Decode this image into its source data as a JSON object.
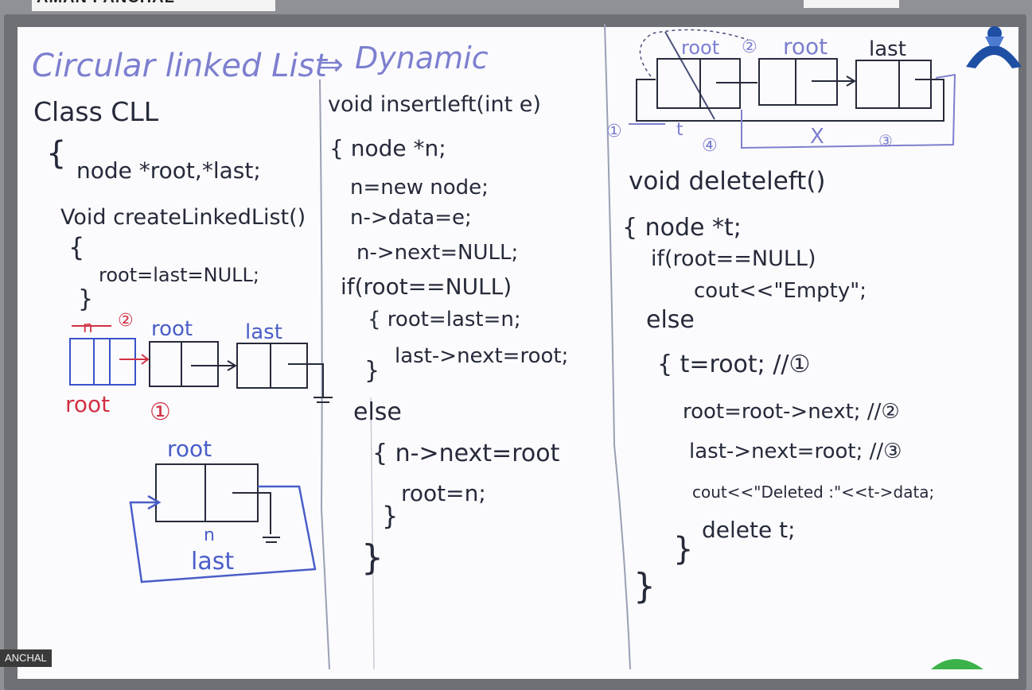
{
  "header_name": "AMAN PANCHAL",
  "name_tag": "ANCHAL",
  "title": "Circular linked List",
  "title_arrow": "⇒",
  "title_suffix": "Dynamic",
  "col1": {
    "lines": [
      "Class CLL",
      "{",
      "node *root,*last;",
      "Void createLinkedList()",
      "{",
      "root=last=NULL;",
      "}"
    ],
    "diagram_labels": {
      "n_label": "n",
      "step2": "②",
      "root": "root",
      "last": "last",
      "root_red": "root",
      "step1": "①",
      "root2": "root",
      "n2": "n",
      "last2": "last"
    }
  },
  "col2": {
    "lines": [
      "void insertleft(int e)",
      "{ node *n;",
      "n=new node;",
      "n->data=e;",
      "n->next=NULL;",
      "if(root==NULL)",
      "{ root=last=n;",
      "last->next=root;",
      "}",
      "else",
      "{ n->next=root",
      "root=n;",
      "}",
      "}"
    ]
  },
  "col3": {
    "diagram_labels": {
      "root_crossed": "root",
      "step2": "②",
      "root": "root",
      "last": "last",
      "step1": "①",
      "t": "t",
      "step4": "④",
      "cross": "X",
      "step3": "③"
    },
    "lines": [
      "void deleteleft()",
      "{ node *t;",
      "if(root==NULL)",
      "cout<<\"Empty\";",
      "else",
      "{ t=root; //①",
      "root=root->next; //②",
      "last->next=root; //③",
      "cout<<\"Deleted :\"<<t->data;",
      "delete t;",
      "}",
      "}"
    ]
  }
}
